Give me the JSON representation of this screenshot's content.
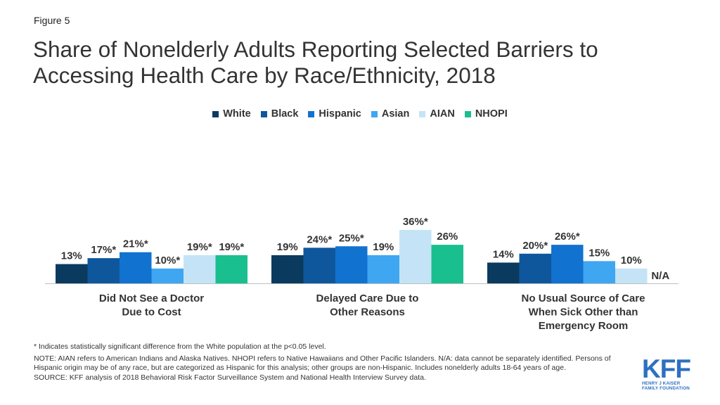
{
  "figure_label": "Figure 5",
  "title": "Share of Nonelderly Adults Reporting Selected Barriers to Accessing Health Care by Race/Ethnicity, 2018",
  "colors": {
    "White": "#0b3a5f",
    "Black": "#0f579d",
    "Hispanic": "#1272cf",
    "Asian": "#3fa6f1",
    "AIAN": "#c4e3f7",
    "NHOPI": "#1abf8f"
  },
  "chart_data": {
    "type": "bar",
    "title": "Share of Nonelderly Adults Reporting Selected Barriers to Accessing Health Care by Race/Ethnicity, 2018",
    "categories": [
      "Did Not See a Doctor Due to Cost",
      "Delayed Care Due to Other Reasons",
      "No Usual Source of Care When Sick Other than Emergency Room"
    ],
    "category_lines": [
      [
        "Did Not See a Doctor",
        "Due to Cost"
      ],
      [
        "Delayed Care Due to",
        "Other Reasons"
      ],
      [
        "No Usual Source of Care",
        "When Sick Other than",
        "Emergency Room"
      ]
    ],
    "series": [
      {
        "name": "White",
        "values": [
          13,
          19,
          14
        ],
        "labels": [
          "13%",
          "19%",
          "14%"
        ]
      },
      {
        "name": "Black",
        "values": [
          17,
          24,
          20
        ],
        "labels": [
          "17%*",
          "24%*",
          "20%*"
        ]
      },
      {
        "name": "Hispanic",
        "values": [
          21,
          25,
          26
        ],
        "labels": [
          "21%*",
          "25%*",
          "26%*"
        ]
      },
      {
        "name": "Asian",
        "values": [
          10,
          19,
          15
        ],
        "labels": [
          "10%*",
          "19%",
          "15%"
        ]
      },
      {
        "name": "AIAN",
        "values": [
          19,
          36,
          10
        ],
        "labels": [
          "19%*",
          "36%*",
          "10%"
        ]
      },
      {
        "name": "NHOPI",
        "values": [
          19,
          26,
          null
        ],
        "labels": [
          "19%*",
          "26%",
          "N/A"
        ]
      }
    ],
    "legend_position": "top",
    "grid": false,
    "ylim": [
      0,
      36
    ]
  },
  "notes": {
    "significance": "* Indicates statistically significant difference from the White population at the p<0.05 level.",
    "note": "NOTE: AIAN refers to American Indians and Alaska Natives. NHOPI refers to Native Hawaiians and Other Pacific Islanders. N/A: data cannot be separately identified. Persons of Hispanic origin may be of any race, but are categorized as Hispanic for this analysis; other groups are non-Hispanic. Includes nonelderly adults 18-64 years of age.",
    "source": "SOURCE: KFF analysis of 2018 Behavioral Risk Factor Surveillance System and National Health Interview Survey data."
  },
  "logo": {
    "text": "KFF",
    "sub_line1": "HENRY J KAISER",
    "sub_line2": "FAMILY FOUNDATION"
  }
}
